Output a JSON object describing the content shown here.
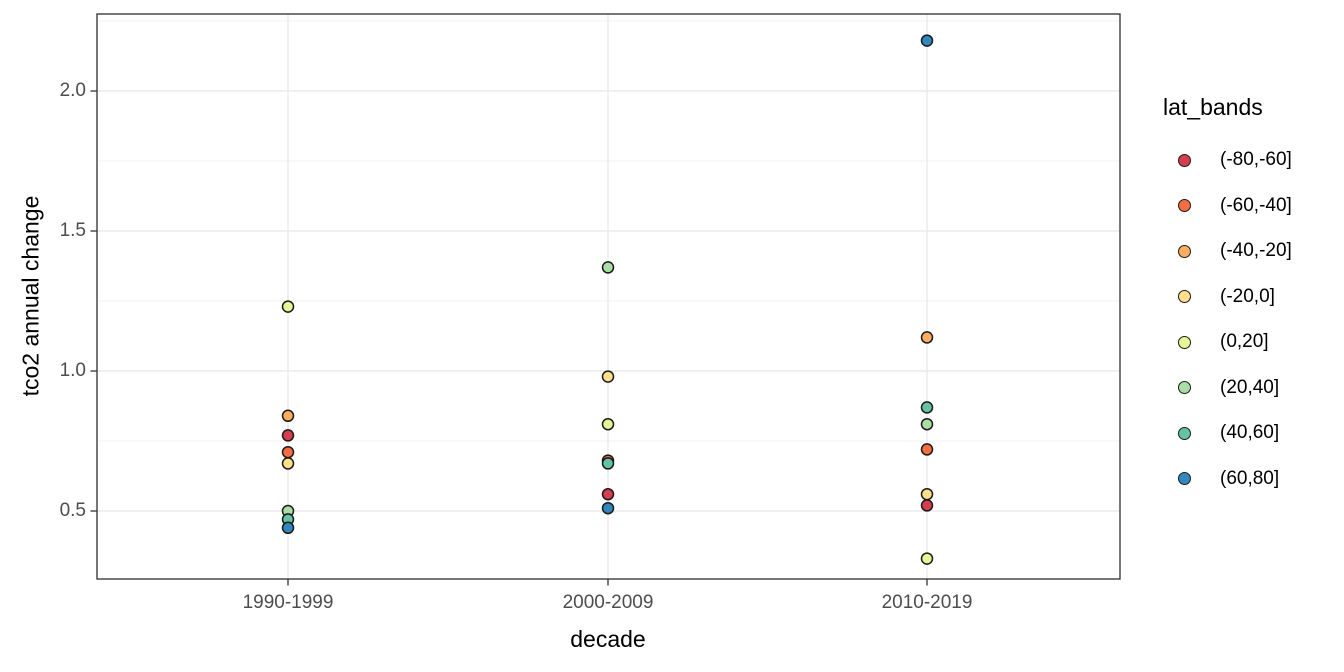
{
  "chart_data": {
    "type": "scatter",
    "title": "",
    "xlabel": "decade",
    "ylabel": "tco2 annual change",
    "categories": [
      "1990-1999",
      "2000-2009",
      "2010-2019"
    ],
    "yticks": [
      0.5,
      1.0,
      1.5,
      2.0
    ],
    "yticks_minor": [
      0.75,
      1.25,
      1.75,
      2.25
    ],
    "ylim": [
      0.26,
      2.27
    ],
    "grid": true,
    "legend": {
      "title": "lat_bands",
      "position": "right"
    },
    "bands": [
      {
        "label": "(-80,-60]",
        "color": "#D53E4F"
      },
      {
        "label": "(-60,-40]",
        "color": "#F46D43"
      },
      {
        "label": "(-40,-20]",
        "color": "#FDAE61"
      },
      {
        "label": "(-20,0]",
        "color": "#FEE08B"
      },
      {
        "label": "(0,20]",
        "color": "#E6F598"
      },
      {
        "label": "(20,40]",
        "color": "#ABDDA4"
      },
      {
        "label": "(40,60]",
        "color": "#66C2A5"
      },
      {
        "label": "(60,80]",
        "color": "#3288BD"
      }
    ],
    "points": [
      {
        "decade": "1990-1999",
        "band": "(0,20]",
        "value": 1.23
      },
      {
        "decade": "1990-1999",
        "band": "(-40,-20]",
        "value": 0.84
      },
      {
        "decade": "1990-1999",
        "band": "(-80,-60]",
        "value": 0.77
      },
      {
        "decade": "1990-1999",
        "band": "(-60,-40]",
        "value": 0.71
      },
      {
        "decade": "1990-1999",
        "band": "(-20,0]",
        "value": 0.67
      },
      {
        "decade": "1990-1999",
        "band": "(20,40]",
        "value": 0.5
      },
      {
        "decade": "1990-1999",
        "band": "(40,60]",
        "value": 0.47
      },
      {
        "decade": "1990-1999",
        "band": "(60,80]",
        "value": 0.44
      },
      {
        "decade": "2000-2009",
        "band": "(20,40]",
        "value": 1.37
      },
      {
        "decade": "2000-2009",
        "band": "(-20,0]",
        "value": 0.98
      },
      {
        "decade": "2000-2009",
        "band": "(0,20]",
        "value": 0.81
      },
      {
        "decade": "2000-2009",
        "band": "(-60,-40]",
        "value": 0.68,
        "partially_hidden": true
      },
      {
        "decade": "2000-2009",
        "band": "(40,60]",
        "value": 0.67
      },
      {
        "decade": "2000-2009",
        "band": "(-80,-60]",
        "value": 0.56
      },
      {
        "decade": "2000-2009",
        "band": "(60,80]",
        "value": 0.51
      },
      {
        "decade": "2010-2019",
        "band": "(60,80]",
        "value": 2.18
      },
      {
        "decade": "2010-2019",
        "band": "(-40,-20]",
        "value": 1.12
      },
      {
        "decade": "2010-2019",
        "band": "(40,60]",
        "value": 0.87
      },
      {
        "decade": "2010-2019",
        "band": "(20,40]",
        "value": 0.81
      },
      {
        "decade": "2010-2019",
        "band": "(-60,-40]",
        "value": 0.72
      },
      {
        "decade": "2010-2019",
        "band": "(-20,0]",
        "value": 0.56
      },
      {
        "decade": "2010-2019",
        "band": "(-80,-60]",
        "value": 0.52
      },
      {
        "decade": "2010-2019",
        "band": "(0,20]",
        "value": 0.33
      }
    ],
    "style_colors": {
      "panel_border": "#2e2e2e",
      "grid_major": "#e8e8e8",
      "grid_minor": "#f3f3f3",
      "tick_mark": "#333333",
      "tick_label": "#4d4d4d",
      "point_stroke": "#1a1a1a"
    }
  }
}
